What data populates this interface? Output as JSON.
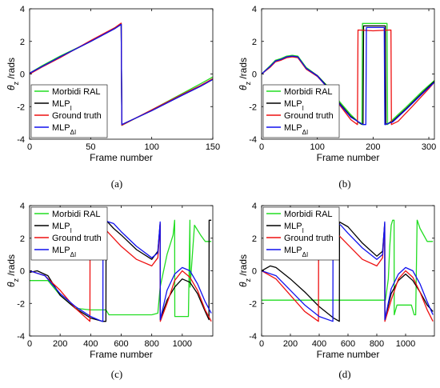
{
  "figure": {
    "legend_entries": [
      "Morbidi RAL",
      "MLP_I",
      "Ground truth",
      "MLP_ΔI"
    ],
    "series_colors": {
      "Morbidi RAL": "#22dd22",
      "MLP_I": "#000000",
      "Ground truth": "#ee1111",
      "MLP_ΔI": "#1111ee"
    }
  },
  "chart_data": [
    {
      "type": "line",
      "caption": "(a)",
      "xlabel": "Frame number",
      "ylabel": "θz /rads",
      "xlim": [
        0,
        150
      ],
      "ylim": [
        -4,
        4
      ],
      "xticks": [
        0,
        50,
        100,
        150
      ],
      "yticks": [
        -4,
        -2,
        0,
        2,
        4
      ],
      "legend_position": "bottom-left",
      "series": [
        {
          "name": "Morbidi RAL",
          "x": [
            0,
            10,
            25,
            50,
            70,
            75,
            75.5,
            100,
            125,
            140,
            152
          ],
          "y": [
            0.05,
            0.5,
            1.1,
            2.0,
            2.85,
            3.1,
            -3.15,
            -2.2,
            -1.2,
            -0.6,
            -0.1
          ]
        },
        {
          "name": "MLP_I",
          "x": [
            0,
            10,
            25,
            50,
            70,
            75,
            75.5,
            100,
            125,
            140,
            152
          ],
          "y": [
            0.05,
            0.45,
            1.05,
            2.0,
            2.8,
            3.05,
            -3.1,
            -2.25,
            -1.3,
            -0.75,
            -0.25
          ]
        },
        {
          "name": "Ground truth",
          "x": [
            0,
            10,
            25,
            50,
            70,
            75,
            75.5,
            100,
            125,
            140,
            152
          ],
          "y": [
            0.0,
            0.42,
            1.0,
            2.05,
            2.85,
            3.12,
            -3.14,
            -2.2,
            -1.25,
            -0.7,
            -0.2
          ]
        },
        {
          "name": "MLP_ΔI",
          "x": [
            0,
            10,
            25,
            50,
            70,
            75,
            75.5,
            100,
            125,
            140,
            152
          ],
          "y": [
            0.05,
            0.45,
            1.05,
            2.0,
            2.8,
            3.05,
            -3.1,
            -2.25,
            -1.3,
            -0.75,
            -0.25
          ]
        }
      ]
    },
    {
      "type": "line",
      "caption": "(b)",
      "xlabel": "Frame number",
      "ylabel": "θz /rads",
      "xlim": [
        0,
        310
      ],
      "ylim": [
        -4,
        4
      ],
      "xticks": [
        0,
        100,
        200,
        300
      ],
      "yticks": [
        -4,
        -2,
        0,
        2,
        4
      ],
      "legend_position": "bottom-left",
      "series": [
        {
          "name": "Morbidi RAL",
          "x": [
            0,
            15,
            25,
            35,
            45,
            55,
            65,
            80,
            100,
            120,
            140,
            160,
            175,
            180,
            181,
            200,
            225,
            226,
            235,
            260,
            290,
            310
          ],
          "y": [
            0,
            0.5,
            0.85,
            0.95,
            1.1,
            1.15,
            1.1,
            0.4,
            -0.1,
            -0.8,
            -1.7,
            -2.5,
            -3.0,
            -3.1,
            3.1,
            3.1,
            3.1,
            -3.1,
            -2.8,
            -2.0,
            -1.0,
            -0.4
          ]
        },
        {
          "name": "MLP_I",
          "x": [
            0,
            15,
            25,
            35,
            45,
            55,
            65,
            80,
            100,
            120,
            140,
            160,
            178,
            182,
            183,
            200,
            222,
            223,
            235,
            260,
            290,
            310
          ],
          "y": [
            0,
            0.45,
            0.8,
            0.9,
            1.05,
            1.1,
            1.05,
            0.35,
            -0.1,
            -0.85,
            -1.8,
            -2.6,
            -3.05,
            -3.1,
            2.95,
            2.95,
            2.95,
            -3.1,
            -2.9,
            -2.1,
            -1.1,
            -0.45
          ]
        },
        {
          "name": "Ground truth",
          "x": [
            0,
            15,
            25,
            35,
            45,
            55,
            65,
            80,
            100,
            120,
            140,
            160,
            172,
            173,
            200,
            232,
            233,
            245,
            270,
            300,
            310
          ],
          "y": [
            0,
            0.4,
            0.75,
            0.85,
            1.0,
            1.05,
            1.0,
            0.3,
            -0.15,
            -0.9,
            -1.9,
            -2.8,
            -3.1,
            2.7,
            2.65,
            2.7,
            -3.1,
            -2.9,
            -2.0,
            -0.9,
            -0.5
          ]
        },
        {
          "name": "MLP_ΔI",
          "x": [
            0,
            15,
            25,
            35,
            45,
            55,
            65,
            80,
            100,
            120,
            140,
            160,
            182,
            187,
            188,
            200,
            220,
            221,
            235,
            260,
            290,
            310
          ],
          "y": [
            0,
            0.45,
            0.8,
            0.9,
            1.05,
            1.1,
            1.05,
            0.35,
            -0.12,
            -0.9,
            -1.85,
            -2.65,
            -3.1,
            -3.1,
            2.85,
            2.85,
            2.85,
            -3.1,
            -2.95,
            -2.15,
            -1.15,
            -0.5
          ]
        }
      ]
    },
    {
      "type": "line",
      "caption": "(c)",
      "xlabel": "Frame number",
      "ylabel": "θz /rads",
      "xlim": [
        0,
        1200
      ],
      "ylim": [
        -4,
        4
      ],
      "xticks": [
        0,
        200,
        400,
        600,
        800,
        1000
      ],
      "yticks": [
        -4,
        -2,
        0,
        2,
        4
      ],
      "legend_position": "top-left",
      "series": [
        {
          "name": "Morbidi RAL",
          "x": [
            0,
            120,
            200,
            300,
            400,
            500,
            520,
            600,
            700,
            800,
            840,
            855,
            900,
            940,
            950,
            951,
            980,
            1000,
            1020,
            1040,
            1050,
            1051,
            1080,
            1120,
            1150,
            1190
          ],
          "y": [
            -0.6,
            -0.6,
            -1.5,
            -2.3,
            -2.4,
            -2.4,
            -2.7,
            -2.7,
            -2.7,
            -2.7,
            -2.6,
            -1.0,
            1.0,
            2.2,
            3.1,
            -2.8,
            -2.8,
            -2.8,
            -2.8,
            -2.8,
            3.1,
            -1.0,
            2.8,
            2.2,
            1.8,
            1.8
          ]
        },
        {
          "name": "MLP_I",
          "x": [
            0,
            50,
            120,
            200,
            300,
            400,
            480,
            500,
            501,
            550,
            600,
            700,
            800,
            840,
            855,
            856,
            900,
            950,
            1000,
            1050,
            1100,
            1150,
            1175,
            1176,
            1190
          ],
          "y": [
            -0.1,
            0.0,
            -0.3,
            -1.5,
            -2.3,
            -2.9,
            -3.1,
            -3.1,
            3.1,
            2.6,
            2.2,
            1.3,
            0.7,
            1.2,
            2.9,
            -3.0,
            -1.8,
            -1.0,
            -0.5,
            -0.7,
            -1.4,
            -2.5,
            -3.0,
            3.1,
            3.1
          ]
        },
        {
          "name": "Ground truth",
          "x": [
            0,
            100,
            200,
            300,
            395,
            396,
            450,
            500,
            600,
            700,
            800,
            840,
            855,
            856,
            900,
            950,
            1000,
            1050,
            1100,
            1150,
            1190
          ],
          "y": [
            0.0,
            -0.3,
            -1.2,
            -2.3,
            -3.1,
            3.1,
            2.8,
            2.5,
            1.5,
            0.7,
            0.3,
            0.8,
            2.9,
            -3.1,
            -2.0,
            -0.6,
            0.0,
            -0.4,
            -1.2,
            -2.4,
            -3.1
          ]
        },
        {
          "name": "MLP_ΔI",
          "x": [
            0,
            100,
            200,
            300,
            400,
            475,
            480,
            481,
            550,
            600,
            700,
            800,
            840,
            855,
            856,
            900,
            950,
            1000,
            1050,
            1100,
            1150,
            1190
          ],
          "y": [
            0.0,
            -0.3,
            -1.4,
            -2.2,
            -2.8,
            -3.1,
            -3.1,
            3.1,
            2.9,
            2.4,
            1.5,
            0.8,
            1.1,
            3.0,
            -3.0,
            -1.2,
            -0.2,
            0.2,
            0.0,
            -0.8,
            -1.9,
            -2.6
          ]
        }
      ]
    },
    {
      "type": "line",
      "caption": "(d)",
      "xlabel": "Frame number",
      "ylabel": "θz /rads",
      "xlim": [
        0,
        1200
      ],
      "ylim": [
        -4,
        4
      ],
      "xticks": [
        0,
        200,
        400,
        600,
        800,
        1000
      ],
      "yticks": [
        -4,
        -2,
        0,
        2,
        4
      ],
      "legend_position": "top-left",
      "series": [
        {
          "name": "Morbidi RAL",
          "x": [
            0,
            200,
            400,
            600,
            800,
            860,
            880,
            890,
            900,
            910,
            920,
            921,
            940,
            1000,
            1040,
            1060,
            1070,
            1080,
            1081,
            1100,
            1150,
            1190
          ],
          "y": [
            -1.8,
            -1.8,
            -1.8,
            -1.8,
            -1.8,
            -1.8,
            -0.5,
            1.5,
            2.8,
            3.1,
            3.1,
            -2.7,
            -2.1,
            -2.1,
            -2.1,
            -2.7,
            -2.7,
            3.1,
            3.1,
            2.6,
            1.8,
            1.8
          ]
        },
        {
          "name": "MLP_I",
          "x": [
            0,
            60,
            100,
            200,
            300,
            400,
            500,
            540,
            541,
            600,
            700,
            800,
            840,
            855,
            856,
            900,
            950,
            1000,
            1050,
            1100,
            1150,
            1190
          ],
          "y": [
            0.0,
            0.3,
            0.2,
            -0.5,
            -1.3,
            -2.2,
            -2.9,
            -3.1,
            3.0,
            2.7,
            1.7,
            0.9,
            1.2,
            2.9,
            -3.0,
            -1.4,
            -0.6,
            -0.2,
            -0.6,
            -1.3,
            -2.1,
            -2.5
          ]
        },
        {
          "name": "Ground truth",
          "x": [
            0,
            100,
            200,
            300,
            395,
            396,
            450,
            500,
            600,
            700,
            800,
            840,
            855,
            856,
            900,
            950,
            1000,
            1050,
            1100,
            1150,
            1190
          ],
          "y": [
            0.0,
            -0.5,
            -1.5,
            -2.5,
            -3.1,
            3.1,
            2.8,
            2.5,
            1.6,
            0.7,
            0.3,
            0.8,
            2.9,
            -3.1,
            -1.8,
            -0.5,
            0.0,
            -0.4,
            -1.3,
            -2.4,
            -3.1
          ]
        },
        {
          "name": "MLP_ΔI",
          "x": [
            0,
            100,
            200,
            300,
            400,
            495,
            496,
            550,
            600,
            700,
            800,
            840,
            855,
            856,
            900,
            950,
            1000,
            1050,
            1100,
            1150,
            1190
          ],
          "y": [
            0.0,
            -0.3,
            -1.2,
            -2.1,
            -2.8,
            -3.1,
            3.1,
            2.8,
            2.3,
            1.4,
            0.7,
            1.0,
            3.0,
            -3.0,
            -1.1,
            -0.2,
            0.2,
            0.0,
            -0.8,
            -1.9,
            -2.7
          ]
        }
      ]
    }
  ]
}
